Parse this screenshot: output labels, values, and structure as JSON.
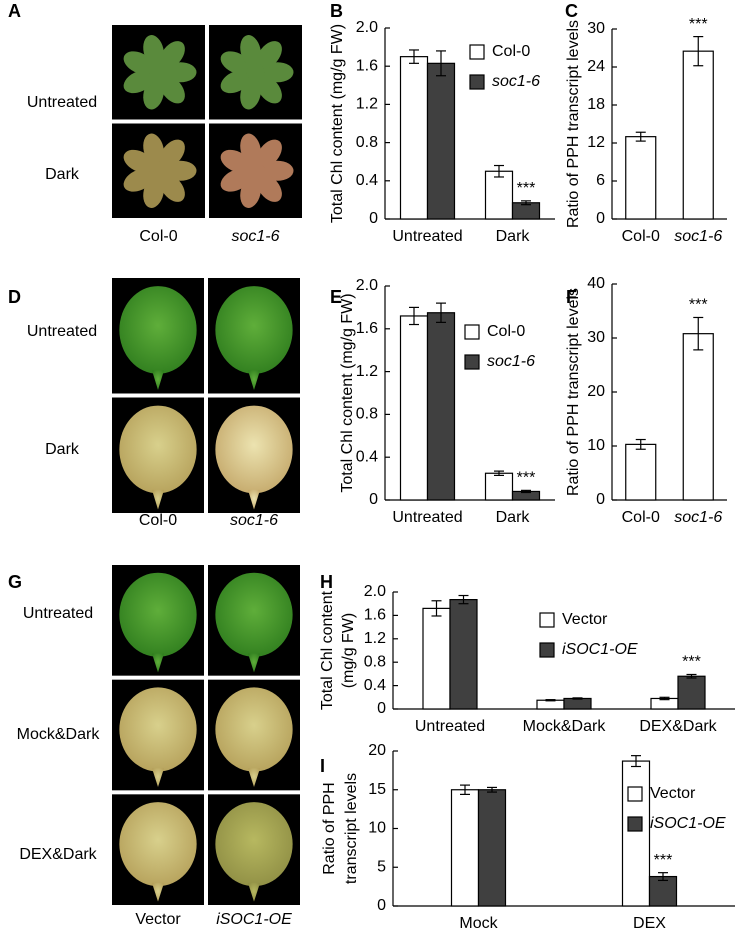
{
  "photo_panels": [
    {
      "panel": "A",
      "rows": [
        "Untreated",
        "Dark"
      ],
      "columns": [
        "Col-0",
        "soc1-6"
      ]
    },
    {
      "panel": "D",
      "rows": [
        "Untreated",
        "Dark"
      ],
      "columns": [
        "Col-0",
        "soc1-6"
      ]
    },
    {
      "panel": "G",
      "rows": [
        "Untreated",
        "Mock&Dark",
        "DEX&Dark"
      ],
      "columns": [
        "Vector",
        "iSOC1-OE"
      ]
    }
  ],
  "chart_data": [
    {
      "type": "bar",
      "panel": "B",
      "ylabel": [
        "Total Chl content (mg/g FW)"
      ],
      "categories": [
        "Untreated",
        "Dark"
      ],
      "series": [
        {
          "name": "Col-0",
          "color": "#ffffff",
          "values": [
            1.7,
            0.5
          ],
          "errors": [
            0.07,
            0.06
          ]
        },
        {
          "name": "soc1-6",
          "color": "#404040",
          "values": [
            1.63,
            0.17
          ],
          "errors": [
            0.13,
            0.02
          ]
        }
      ],
      "ylim": [
        0,
        2
      ],
      "yticks": [
        0,
        0.4,
        0.8,
        1.2,
        1.6,
        {
          "value": 2,
          "label": "2.0"
        }
      ],
      "legend": "upper right",
      "annotations": [
        {
          "text": "***",
          "series": "soc1-6",
          "category": "Dark"
        }
      ]
    },
    {
      "type": "bar",
      "panel": "C",
      "ylabel": [
        "Ratio of PPH transcript levels"
      ],
      "categories": [
        "Col-0",
        "soc1-6"
      ],
      "values": [
        13,
        26.5
      ],
      "errors": [
        0.7,
        2.3
      ],
      "color": "#ffffff",
      "ylim": [
        0,
        30
      ],
      "yticks": [
        0,
        6,
        12,
        18,
        24,
        30
      ],
      "annotations": [
        {
          "text": "***",
          "category": "soc1-6"
        }
      ]
    },
    {
      "type": "bar",
      "panel": "E",
      "ylabel": [
        "Total Chl content (mg/g FW)"
      ],
      "categories": [
        "Untreated",
        "Dark"
      ],
      "series": [
        {
          "name": "Col-0",
          "color": "#ffffff",
          "values": [
            1.72,
            0.25
          ],
          "errors": [
            0.08,
            0.02
          ]
        },
        {
          "name": "soc1-6",
          "color": "#404040",
          "values": [
            1.75,
            0.08
          ],
          "errors": [
            0.09,
            0.01
          ]
        }
      ],
      "ylim": [
        0,
        2
      ],
      "yticks": [
        0,
        0.4,
        0.8,
        1.2,
        1.6,
        {
          "value": 2,
          "label": "2.0"
        }
      ],
      "legend": "upper right",
      "annotations": [
        {
          "text": "***",
          "series": "soc1-6",
          "category": "Dark"
        }
      ]
    },
    {
      "type": "bar",
      "panel": "F",
      "ylabel": [
        "Ratio of PPH transcript levels"
      ],
      "categories": [
        "Col-0",
        "soc1-6"
      ],
      "values": [
        10.3,
        30.8
      ],
      "errors": [
        0.9,
        3.0
      ],
      "color": "#ffffff",
      "ylim": [
        0,
        40
      ],
      "yticks": [
        0,
        10,
        20,
        30,
        40
      ],
      "annotations": [
        {
          "text": "***",
          "category": "soc1-6"
        }
      ]
    },
    {
      "type": "bar",
      "panel": "H",
      "ylabel": [
        "Total Chl content",
        "(mg/g FW)"
      ],
      "categories": [
        "Untreated",
        "Mock&Dark",
        "DEX&Dark"
      ],
      "series": [
        {
          "name": "Vector",
          "color": "#ffffff",
          "values": [
            1.72,
            0.15,
            0.18
          ],
          "errors": [
            0.13,
            0.01,
            0.02
          ]
        },
        {
          "name": "iSOC1-OE",
          "color": "#404040",
          "values": [
            1.87,
            0.18,
            0.56
          ],
          "errors": [
            0.07,
            0.01,
            0.03
          ]
        }
      ],
      "ylim": [
        0,
        2
      ],
      "yticks": [
        0,
        0.4,
        0.8,
        1.2,
        1.6,
        {
          "value": 2,
          "label": "2.0"
        }
      ],
      "legend": "right",
      "annotations": [
        {
          "text": "***",
          "series": "iSOC1-OE",
          "category": "DEX&Dark"
        }
      ]
    },
    {
      "type": "bar",
      "panel": "I",
      "ylabel": [
        "Ratio of PPH",
        "transcript levels"
      ],
      "categories": [
        "Mock",
        "DEX"
      ],
      "series": [
        {
          "name": "Vector",
          "color": "#ffffff",
          "values": [
            15.0,
            18.7
          ],
          "errors": [
            0.6,
            0.7
          ]
        },
        {
          "name": "iSOC1-OE",
          "color": "#404040",
          "values": [
            15.0,
            3.8
          ],
          "errors": [
            0.3,
            0.5
          ]
        }
      ],
      "ylim": [
        0,
        20
      ],
      "yticks": [
        0,
        5,
        10,
        15,
        20
      ],
      "legend": "right",
      "annotations": [
        {
          "text": "***",
          "series": "iSOC1-OE",
          "category": "DEX"
        }
      ]
    }
  ]
}
